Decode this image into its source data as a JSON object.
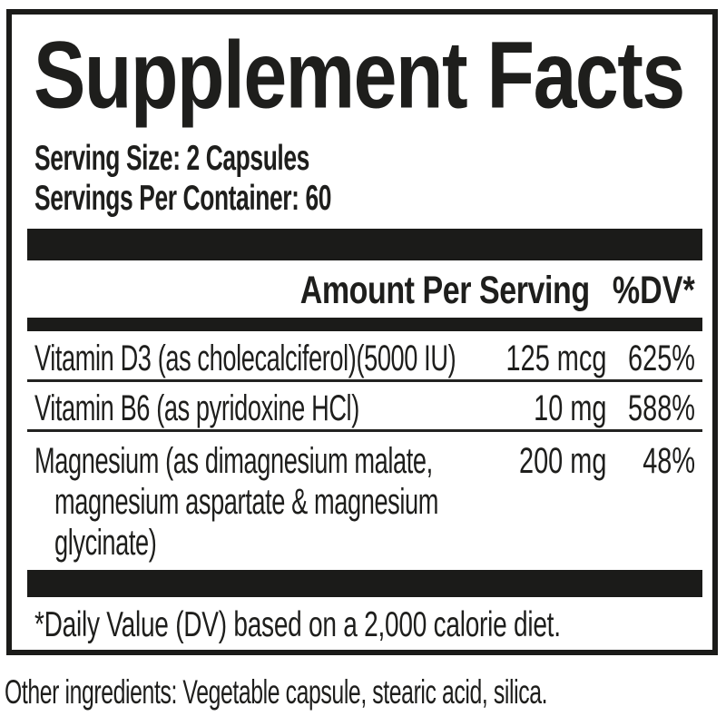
{
  "panel": {
    "title": "Supplement Facts",
    "serving_size": "Serving Size: 2 Capsules",
    "servings_per_container": "Servings Per Container: 60",
    "columns": {
      "amount_header": "Amount Per Serving",
      "dv_header": "%DV*"
    },
    "nutrients": [
      {
        "name": "Vitamin D3 (as cholecalciferol)(5000 IU)",
        "amount": "125 mcg",
        "dv": "625%"
      },
      {
        "name": "Vitamin B6 (as pyridoxine HCl)",
        "amount": "10 mg",
        "dv": "588%"
      },
      {
        "name": "Magnesium (as dimagnesium malate,",
        "name_line2": "magnesium aspartate & magnesium",
        "name_line3": "glycinate)",
        "amount": "200 mg",
        "dv": "48%"
      }
    ],
    "footnote": "*Daily Value (DV) based on a 2,000 calorie diet.",
    "colors": {
      "ink": "#1e1e1c",
      "bar": "#1b1b19",
      "background": "#ffffff"
    }
  },
  "other_ingredients": "Other ingredients: Vegetable capsule, stearic acid, silica."
}
